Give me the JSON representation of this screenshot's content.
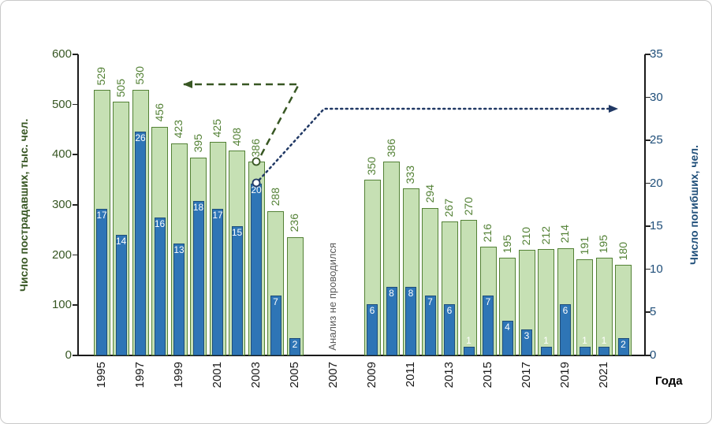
{
  "chart_data": {
    "type": "bar",
    "title": "",
    "x_axis_label": "Года",
    "categories": [
      1995,
      1996,
      1997,
      1998,
      1999,
      2000,
      2001,
      2002,
      2003,
      2004,
      2005,
      2006,
      2007,
      2008,
      2009,
      2010,
      2011,
      2012,
      2013,
      2014,
      2015,
      2016,
      2017,
      2018,
      2019,
      2020,
      2021,
      2022
    ],
    "x_tick_labels": [
      "1995",
      "1997",
      "1999",
      "2001",
      "2003",
      "2005",
      "2007",
      "2009",
      "2011",
      "2013",
      "2015",
      "2017",
      "2019",
      "2021"
    ],
    "left_axis": {
      "label": "Число пострадавших, тыс. чел.",
      "min": 0,
      "max": 600,
      "step": 100,
      "color": "#375623"
    },
    "right_axis": {
      "label": "Число погибших, чел.",
      "min": 0,
      "max": 35,
      "step": 5,
      "color": "#1f4e79"
    },
    "series": [
      {
        "name": "Число пострадавших, тыс. чел.",
        "axis": "left",
        "fill": "#c6e0b4",
        "border": "#538135",
        "label_color": "#538135",
        "values": [
          529,
          505,
          530,
          456,
          423,
          395,
          425,
          408,
          386,
          288,
          236,
          null,
          null,
          null,
          350,
          386,
          333,
          294,
          267,
          270,
          216,
          195,
          210,
          212,
          214,
          191,
          195,
          180
        ]
      },
      {
        "name": "Число погибших, чел.",
        "axis": "right",
        "fill": "#2e75b6",
        "border": "#1f4e79",
        "label_color": "#ffffff",
        "values": [
          17,
          14,
          26,
          16,
          13,
          18,
          17,
          15,
          20,
          7,
          2,
          null,
          null,
          null,
          6,
          8,
          8,
          7,
          6,
          1,
          7,
          4,
          3,
          1,
          6,
          1,
          1,
          2
        ]
      }
    ],
    "annotations": {
      "gap_note": {
        "text": "Анализ не проводился",
        "year": 2007
      },
      "green_arrow": {
        "color": "#385723",
        "style": "dashed",
        "points_to": "left-axis"
      },
      "blue_arrow": {
        "color": "#203864",
        "style": "dotted",
        "points_to": "right-axis"
      }
    },
    "grid": false,
    "legend_position": "none"
  }
}
